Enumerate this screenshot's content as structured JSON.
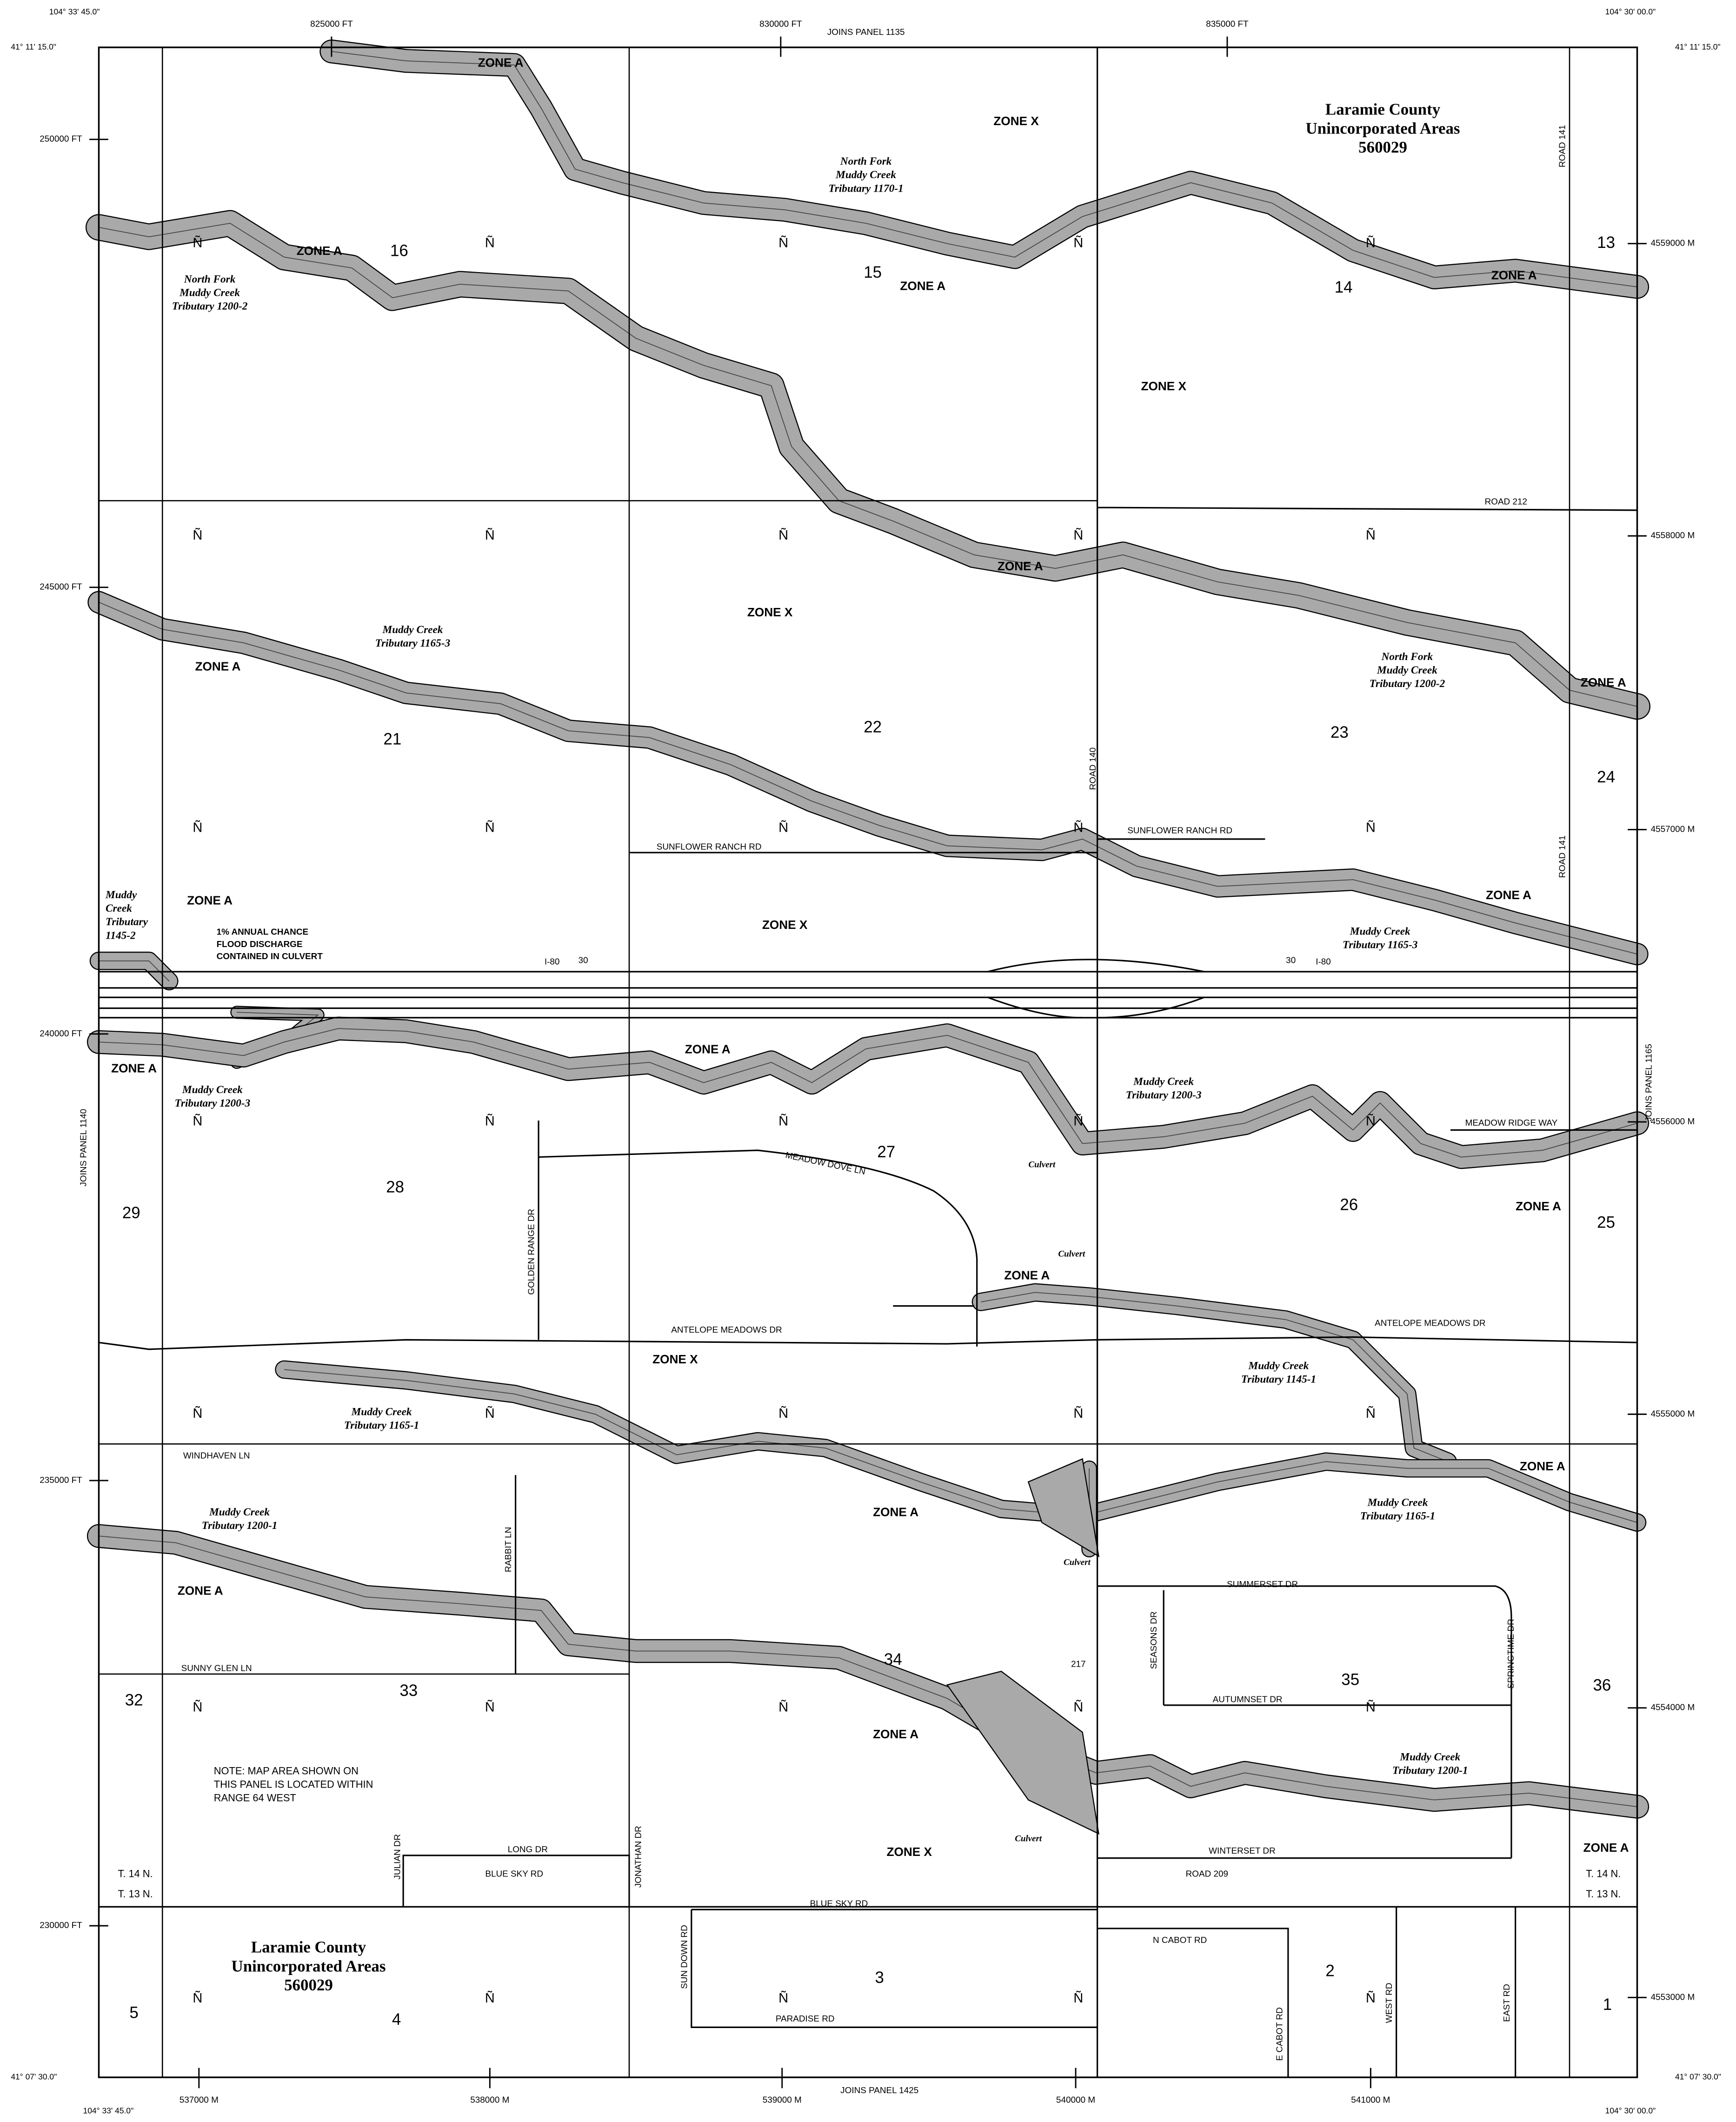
{
  "frame": {
    "corner_labels": [
      "104° 33' 45.0\"",
      "41° 11' 15.0\"",
      "104° 30' 00.0\"",
      "41° 11' 15.0\"",
      "41° 07' 30.0\"",
      "104° 33' 45.0\"",
      "41° 07' 30.0\"",
      "104° 30' 00.0\""
    ],
    "top_easting_ft": [
      "825000 FT",
      "830000 FT",
      "835000 FT"
    ],
    "left_northing_ft": [
      "250000 FT",
      "245000 FT",
      "240000 FT",
      "235000 FT",
      "230000 FT"
    ],
    "right_northing_m": [
      "4559000 M",
      "4558000 M",
      "4557000 M",
      "4556000 M",
      "4555000 M",
      "4554000 M",
      "4553000 M"
    ],
    "bottom_easting_m": [
      "537000 M",
      "538000 M",
      "539000 M",
      "540000 M",
      "541000 M"
    ],
    "adjoining_panels": {
      "top": "JOINS PANEL 1135",
      "bottom": "JOINS PANEL 1425",
      "left": "JOINS PANEL 1140",
      "right": "JOINS PANEL 1165"
    }
  },
  "communities": [
    {
      "lines": [
        "Laramie County",
        "Unincorporated Areas",
        "560029"
      ]
    },
    {
      "lines": [
        "Laramie County",
        "Unincorporated Areas",
        "560029"
      ]
    }
  ],
  "sections": [
    "16",
    "15",
    "14",
    "13",
    "21",
    "22",
    "23",
    "24",
    "29",
    "28",
    "27",
    "26",
    "25",
    "32",
    "33",
    "34",
    "35",
    "36",
    "5",
    "4",
    "3",
    "2",
    "1"
  ],
  "section_marks": [
    "Ñ",
    "Ñ",
    "Ñ",
    "Ñ",
    "Ñ",
    "Ñ",
    "Ñ",
    "Ñ",
    "Ñ",
    "Ñ",
    "Ñ",
    "Ñ",
    "Ñ",
    "Ñ",
    "Ñ",
    "Ñ",
    "Ñ",
    "Ñ",
    "Ñ",
    "Ñ",
    "Ñ",
    "Ñ",
    "Ñ",
    "Ñ",
    "Ñ",
    "Ñ",
    "Ñ",
    "Ñ",
    "Ñ",
    "Ñ",
    "Ñ",
    "Ñ",
    "Ñ",
    "Ñ",
    "Ñ"
  ],
  "zones": [
    "ZONE A",
    "ZONE A",
    "ZONE A",
    "ZONE A",
    "ZONE A",
    "ZONE A",
    "ZONE A",
    "ZONE A",
    "ZONE A",
    "ZONE A",
    "ZONE A",
    "ZONE A",
    "ZONE A",
    "ZONE A",
    "ZONE A",
    "ZONE A",
    "ZONE A",
    "ZONE A",
    "ZONE X",
    "ZONE X",
    "ZONE X",
    "ZONE X",
    "ZONE X",
    "ZONE X"
  ],
  "streams": [
    {
      "lines": [
        "North Fork",
        "Muddy Creek",
        "Tributary 1170-1"
      ]
    },
    {
      "lines": [
        "North Fork",
        "Muddy Creek",
        "Tributary 1200-2"
      ]
    },
    {
      "lines": [
        "North Fork",
        "Muddy Creek",
        "Tributary 1200-2"
      ]
    },
    {
      "lines": [
        "Muddy Creek",
        "Tributary 1165-3"
      ]
    },
    {
      "lines": [
        "Muddy Creek",
        "Tributary 1165-3"
      ]
    },
    {
      "lines": [
        "Muddy",
        "Creek",
        "Tributary",
        "1145-2"
      ]
    },
    {
      "lines": [
        "Muddy Creek",
        "Tributary 1200-3"
      ]
    },
    {
      "lines": [
        "Muddy Creek",
        "Tributary 1200-3"
      ]
    },
    {
      "lines": [
        "Muddy Creek",
        "Tributary 1165-1"
      ]
    },
    {
      "lines": [
        "Muddy Creek",
        "Tributary 1165-1"
      ]
    },
    {
      "lines": [
        "Muddy Creek",
        "Tributary 1145-1"
      ]
    },
    {
      "lines": [
        "Muddy Creek",
        "Tributary 1200-1"
      ]
    },
    {
      "lines": [
        "Muddy Creek",
        "Tributary 1200-1"
      ]
    }
  ],
  "culverts": [
    "Culvert",
    "Culvert",
    "Culvert",
    "Culvert"
  ],
  "notes": [
    {
      "lines": [
        "1% ANNUAL CHANCE",
        "FLOOD DISCHARGE",
        "CONTAINED IN CULVERT"
      ]
    },
    {
      "lines": [
        "NOTE: MAP AREA SHOWN ON",
        "THIS PANEL IS LOCATED WITHIN",
        "RANGE 64 WEST"
      ]
    }
  ],
  "roads": [
    "ROAD 141",
    "ROAD 212",
    "ROAD 141",
    "ROAD 140",
    "SUNFLOWER RANCH RD",
    "SUNFLOWER RANCH RD",
    "I-80",
    "30",
    "30",
    "I-80",
    "MEADOW RIDGE WAY",
    "MEADOW DOVE LN",
    "GOLDEN RANGE DR",
    "ANTELOPE MEADOWS DR",
    "ANTELOPE MEADOWS DR",
    "WINDHAVEN LN",
    "RABBIT LN",
    "SUNNY GLEN LN",
    "217",
    "SUMMERSET DR",
    "SEASONS DR",
    "AUTUMNSET DR",
    "SPRINGTIME DR",
    "WINTERSET DR",
    "LONG DR",
    "JULIAN DR",
    "JONATHAN DR",
    "BLUE SKY RD",
    "ROAD 209",
    "BLUE SKY RD",
    "SUN DOWN RD",
    "PARADISE RD",
    "N CABOT RD",
    "E CABOT RD",
    "WEST RD",
    "EAST RD"
  ],
  "townships": [
    "T. 14 N.",
    "T. 13 N.",
    "T. 14 N.",
    "T. 13 N."
  ]
}
